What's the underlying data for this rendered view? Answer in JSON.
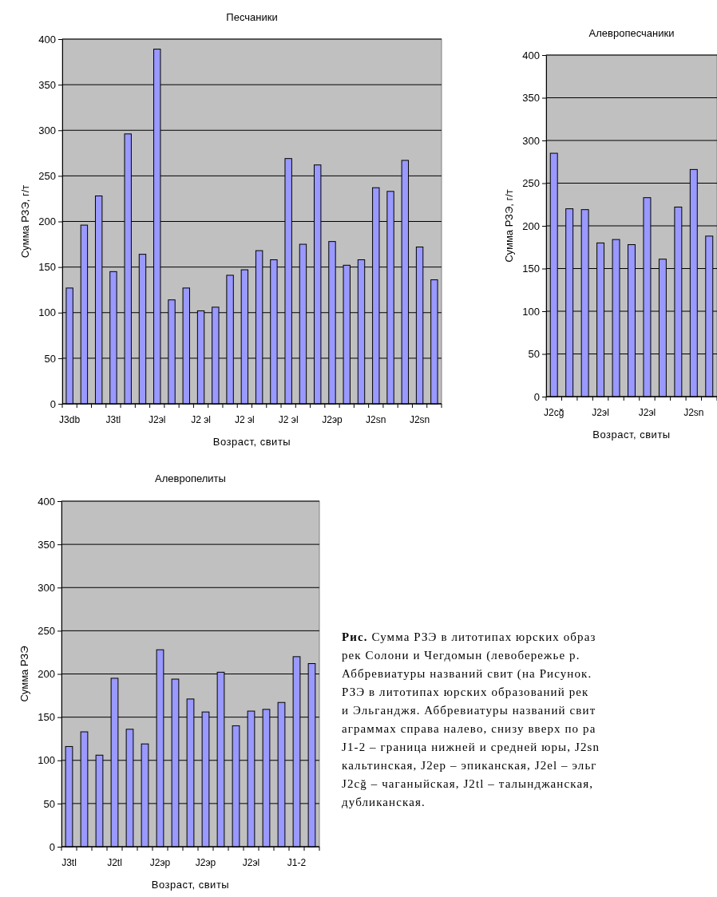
{
  "chart_data": [
    {
      "type": "bar",
      "title": "Песчаники",
      "xlabel": "Возраст, свиты",
      "ylabel": "Сумма РЗЭ, г/т",
      "categories": [
        "J3db",
        null,
        null,
        "J3tl",
        null,
        null,
        "J2эl",
        null,
        null,
        "J2 эl",
        null,
        null,
        "J2 эl",
        null,
        null,
        "J2 эl",
        null,
        null,
        "J2эр",
        null,
        null,
        "J2sn",
        null,
        null,
        "J2sn",
        null
      ],
      "values": [
        127,
        196,
        228,
        145,
        296,
        164,
        389,
        114,
        127,
        102,
        106,
        141,
        147,
        168,
        158,
        269,
        175,
        262,
        178,
        152,
        158,
        237,
        233,
        267,
        172,
        136
      ],
      "color": "#9999ff",
      "ylim": [
        0,
        400
      ],
      "yticks": [
        0,
        50,
        100,
        150,
        200,
        250,
        300,
        350,
        400
      ],
      "grid": "y"
    },
    {
      "type": "bar",
      "title": "Алевропесчаники",
      "xlabel": "Возраст, свиты",
      "ylabel": "Сумма РЗЭ, г/т",
      "categories": [
        "J2cğ",
        null,
        null,
        "J2эl",
        null,
        null,
        "J2эl",
        null,
        null,
        "J2sn",
        null
      ],
      "values": [
        285,
        220,
        219,
        180,
        184,
        178,
        233,
        161,
        222,
        266,
        188
      ],
      "color": "#9999ff",
      "ylim": [
        0,
        400
      ],
      "yticks": [
        0,
        50,
        100,
        150,
        200,
        250,
        300,
        350,
        400
      ],
      "grid": "y"
    },
    {
      "type": "bar",
      "title": "Алевропелиты",
      "xlabel": "Возраст, свиты",
      "ylabel": "Сумма РЗЭ",
      "categories": [
        "J3tl",
        null,
        null,
        "J2tl",
        null,
        null,
        "J2эр",
        null,
        null,
        "J2эр",
        null,
        null,
        "J2эl",
        null,
        null,
        "J1-2",
        null
      ],
      "values": [
        116,
        133,
        106,
        195,
        136,
        119,
        228,
        194,
        171,
        156,
        202,
        140,
        157,
        159,
        167,
        220,
        212
      ],
      "color": "#9999ff",
      "ylim": [
        0,
        400
      ],
      "yticks": [
        0,
        50,
        100,
        150,
        200,
        250,
        300,
        350,
        400
      ],
      "grid": "y"
    },
    {
      "type": "other",
      "title": "Рис.",
      "annotations": [
        "Сумма РЗЭ в литотипах юрских образ",
        "рек Солони и Чегдомын (левобережье р.",
        "Аббревиатуры названий свит (на Рисунок.",
        "РЗЭ в литотипах юрских образований рек",
        "и Эльганджя. Аббревиатуры названий свит",
        "аграммах справа налево, снизу вверх по ра",
        "J1-2 – граница нижней и средней юры, J2sn",
        "кальтинская, J2ep – эпиканская, J2el – эльг",
        "J2cğ – чаганыйская, J2tl – талынджанская,",
        "дубликанская."
      ]
    }
  ]
}
